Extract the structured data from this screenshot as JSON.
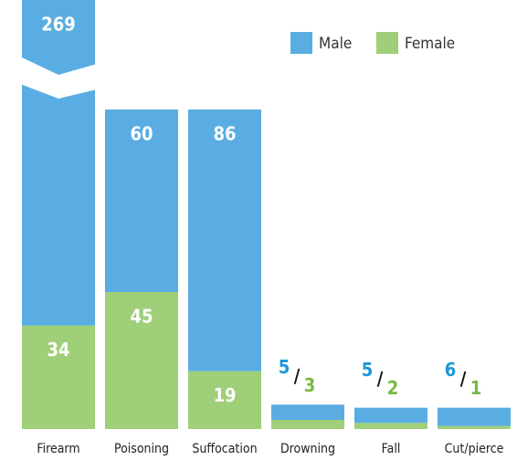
{
  "chart_data": {
    "type": "stacked_bar",
    "categories": [
      "Firearm",
      "Poisoning",
      "Suffocation",
      "Drowning",
      "Fall",
      "Cut/pierce"
    ],
    "series": [
      {
        "name": "Male",
        "color": "#5aade2",
        "label_color": "#1b97d5",
        "values": [
          269,
          60,
          86,
          5,
          5,
          6
        ]
      },
      {
        "name": "Female",
        "color": "#9fcf78",
        "label_color": "#77b944",
        "values": [
          34,
          45,
          19,
          3,
          2,
          1
        ]
      }
    ],
    "label_separator": "/",
    "legend": "top-right",
    "axis_break": true
  }
}
